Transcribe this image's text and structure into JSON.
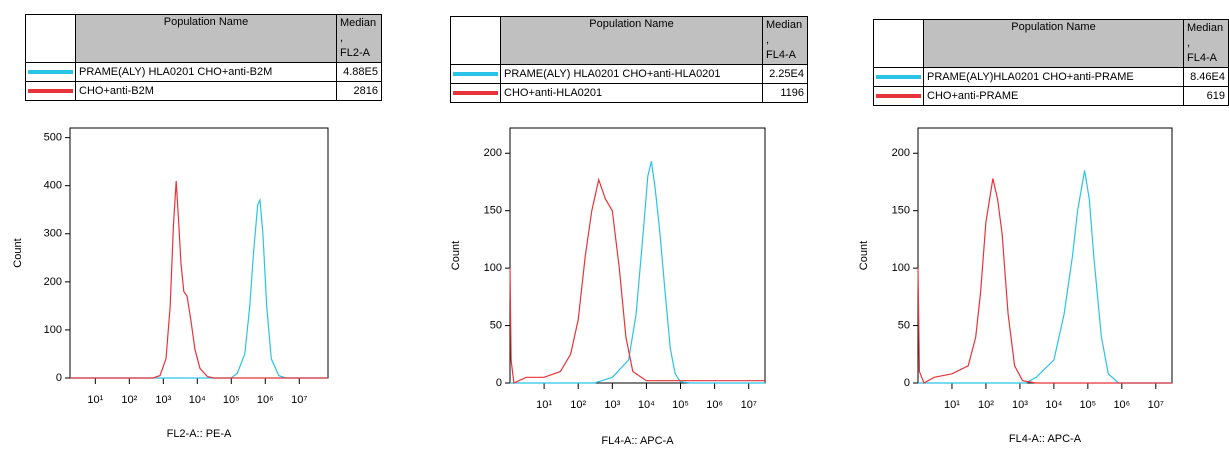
{
  "chart_data": [
    {
      "type": "line",
      "xscale": "log",
      "x_label": "FL2-A:: PE-A",
      "y_label": "Count",
      "name_header": "Population Name",
      "median_header": "Median ,\nFL2-A",
      "xlim": [
        1.8,
        70000000
      ],
      "ylim": [
        0,
        520
      ],
      "xticks": [
        {
          "value": 10,
          "label": "10¹"
        },
        {
          "value": 100,
          "label": "10²"
        },
        {
          "value": 1000,
          "label": "10³"
        },
        {
          "value": 10000,
          "label": "10⁴"
        },
        {
          "value": 100000,
          "label": "10⁵"
        },
        {
          "value": 1000000,
          "label": "10⁶"
        },
        {
          "value": 10000000,
          "label": "10⁷"
        }
      ],
      "yticks": [
        0,
        100,
        200,
        300,
        400,
        500
      ],
      "series": [
        {
          "name": "PRAME(ALY) HLA0201 CHO+anti-B2M",
          "median": "4.88E5",
          "color": "#29c3e6",
          "x": [
            1.8,
            100000,
            150000,
            250000,
            350000,
            450000,
            600000,
            700000,
            850000,
            1100000,
            1500000,
            2500000,
            4000000,
            70000000
          ],
          "values": [
            0,
            0,
            10,
            50,
            150,
            260,
            360,
            370,
            300,
            150,
            40,
            5,
            0,
            0
          ]
        },
        {
          "name": "CHO+anti-B2M",
          "median": "2816",
          "color": "#e8333a",
          "x": [
            1.8,
            500,
            800,
            1200,
            1600,
            2000,
            2400,
            2800,
            3300,
            4000,
            5000,
            6500,
            8500,
            12000,
            20000,
            30000,
            70000000
          ],
          "values": [
            0,
            0,
            5,
            40,
            150,
            320,
            410,
            330,
            240,
            180,
            170,
            120,
            60,
            20,
            3,
            0,
            0
          ]
        }
      ]
    },
    {
      "type": "line",
      "xscale": "log",
      "x_label": "FL4-A:: APC-A",
      "y_label": "Count",
      "name_header": "Population Name",
      "median_header": "Median ,\nFL4-A",
      "xlim": [
        1,
        30000000
      ],
      "ylim": [
        0,
        222
      ],
      "xticks": [
        {
          "value": 10,
          "label": "10¹"
        },
        {
          "value": 100,
          "label": "10²"
        },
        {
          "value": 1000,
          "label": "10³"
        },
        {
          "value": 10000,
          "label": "10⁴"
        },
        {
          "value": 100000,
          "label": "10⁵"
        },
        {
          "value": 1000000,
          "label": "10⁶"
        },
        {
          "value": 10000000,
          "label": "10⁷"
        }
      ],
      "yticks": [
        0,
        50,
        100,
        150,
        200
      ],
      "series": [
        {
          "name": "PRAME(ALY) HLA0201 CHO+anti-HLA0201",
          "median": "2.25E4",
          "color": "#29c3e6",
          "x": [
            1,
            300,
            1000,
            3000,
            5000,
            8000,
            11000,
            14000,
            18000,
            25000,
            35000,
            50000,
            70000,
            100000,
            200000,
            30000000
          ],
          "values": [
            0,
            0,
            5,
            20,
            60,
            130,
            180,
            193,
            170,
            130,
            80,
            30,
            8,
            1,
            0,
            0
          ]
        },
        {
          "name": "CHO+anti-HLA0201",
          "median": "1196",
          "color": "#e8333a",
          "x": [
            1,
            1.08,
            1.3,
            3,
            10,
            30,
            60,
            100,
            160,
            250,
            400,
            630,
            1000,
            1600,
            2500,
            4000,
            10000,
            30000000
          ],
          "values": [
            100,
            20,
            0,
            5,
            5,
            10,
            25,
            55,
            110,
            150,
            177,
            160,
            150,
            100,
            40,
            10,
            2,
            2
          ]
        }
      ]
    },
    {
      "type": "line",
      "xscale": "log",
      "x_label": "FL4-A:: APC-A",
      "y_label": "Count",
      "name_header": "Population Name",
      "median_header": "Median ,\nFL4-A",
      "xlim": [
        1,
        30000000
      ],
      "ylim": [
        0,
        222
      ],
      "xticks": [
        {
          "value": 10,
          "label": "10¹"
        },
        {
          "value": 100,
          "label": "10²"
        },
        {
          "value": 1000,
          "label": "10³"
        },
        {
          "value": 10000,
          "label": "10⁴"
        },
        {
          "value": 100000,
          "label": "10⁵"
        },
        {
          "value": 1000000,
          "label": "10⁶"
        },
        {
          "value": 10000000,
          "label": "10⁷"
        }
      ],
      "yticks": [
        0,
        50,
        100,
        150,
        200
      ],
      "series": [
        {
          "name": "PRAME(ALY)HLA0201 CHO+anti-PRAME",
          "median": "8.46E4",
          "color": "#29c3e6",
          "x": [
            1,
            1500,
            3000,
            10000,
            20000,
            35000,
            50000,
            80000,
            110000,
            150000,
            250000,
            400000,
            800000,
            30000000
          ],
          "values": [
            0,
            0,
            5,
            20,
            60,
            110,
            150,
            185,
            160,
            110,
            40,
            8,
            0,
            0
          ]
        },
        {
          "name": "CHO+anti-PRAME",
          "median": "619",
          "color": "#e8333a",
          "x": [
            1,
            1.1,
            1.5,
            3,
            10,
            30,
            50,
            70,
            100,
            160,
            220,
            300,
            450,
            700,
            1200,
            3000,
            30000000
          ],
          "values": [
            100,
            10,
            0,
            5,
            8,
            15,
            40,
            80,
            140,
            178,
            160,
            130,
            60,
            15,
            2,
            0,
            0
          ]
        }
      ]
    }
  ]
}
